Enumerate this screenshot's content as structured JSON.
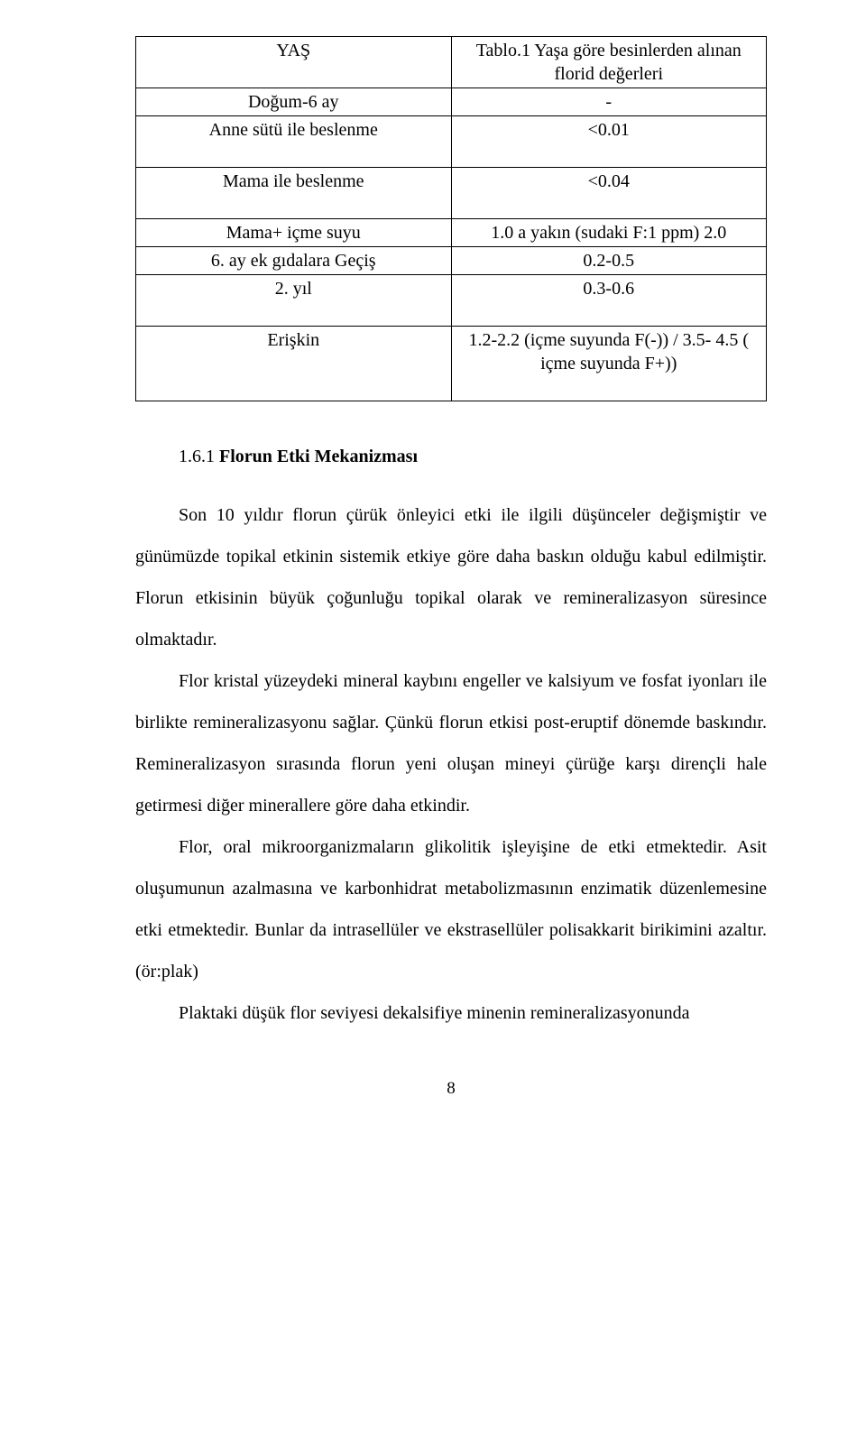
{
  "table": {
    "header_left": "YAŞ",
    "header_right": "Tablo.1 Yaşa göre besinlerden alınan florid değerleri",
    "rows": [
      {
        "left": "Doğum-6 ay",
        "right": "-"
      },
      {
        "left": "Anne sütü ile beslenme",
        "right": "<0.01",
        "tall": true
      },
      {
        "left": "Mama ile beslenme",
        "right": "<0.04",
        "tall": true
      },
      {
        "left": "Mama+ içme suyu",
        "right": "1.0 a yakın (sudaki F:1 ppm) 2.0"
      },
      {
        "left": "6. ay ek gıdalara Geçiş",
        "right": "0.2-0.5"
      },
      {
        "left": "2. yıl",
        "right": "0.3-0.6",
        "tall": true
      },
      {
        "left": "Erişkin",
        "right": "1.2-2.2 (içme suyunda F(-)) / 3.5- 4.5 ( içme suyunda F+))",
        "tall": true
      }
    ]
  },
  "heading_number": "1.6.1",
  "heading_text": "Florun Etki Mekanizması",
  "paragraphs": [
    "Son 10 yıldır florun çürük önleyici etki ile ilgili düşünceler değişmiştir ve günümüzde topikal etkinin sistemik etkiye göre daha baskın olduğu kabul edilmiştir. Florun etkisinin büyük çoğunluğu topikal olarak ve remineralizasyon süresince olmaktadır.",
    "Flor kristal yüzeydeki mineral kaybını engeller ve kalsiyum ve fosfat iyonları ile birlikte remineralizasyonu sağlar. Çünkü florun etkisi post-eruptif dönemde baskındır. Remineralizasyon sırasında florun yeni oluşan mineyi çürüğe karşı dirençli hale getirmesi diğer minerallere göre daha etkindir.",
    "Flor, oral mikroorganizmaların glikolitik işleyişine de etki etmektedir. Asit oluşumunun azalmasına ve karbonhidrat metabolizmasının enzimatik düzenlemesine etki etmektedir. Bunlar da intrasellüler ve ekstrasellüler polisakkarit birikimini azaltır.(ör:plak)",
    "Plaktaki düşük flor seviyesi dekalsifiye minenin remineralizasyonunda"
  ],
  "page_number": "8"
}
